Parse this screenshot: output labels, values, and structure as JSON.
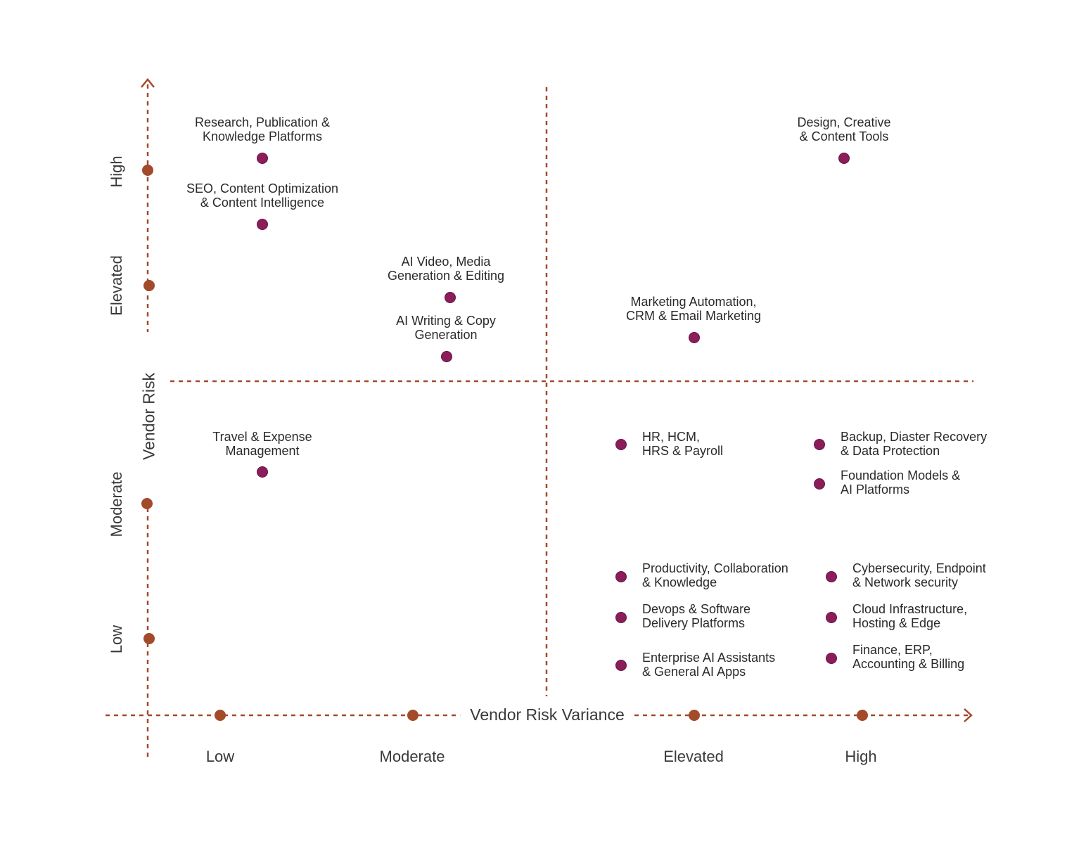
{
  "chart_data": {
    "type": "scatter",
    "xlabel": "Vendor Risk Variance",
    "ylabel": "Vendor Risk",
    "x_ticks": [
      "Low",
      "Moderate",
      "Elevated",
      "High"
    ],
    "y_ticks": [
      "Low",
      "Moderate",
      "Elevated",
      "High"
    ],
    "grid": false,
    "quadrant_dividers": true,
    "colors": {
      "axis": "#a34a2a",
      "point": "#8a1d5a"
    },
    "points": [
      {
        "label_lines": [
          "Research, Publication &",
          "Knowledge Platforms"
        ]
      },
      {
        "label_lines": [
          "SEO, Content Optimization",
          "& Content Intelligence"
        ]
      },
      {
        "label_lines": [
          "AI Video, Media",
          "Generation & Editing"
        ]
      },
      {
        "label_lines": [
          "AI Writing & Copy",
          "Generation"
        ]
      },
      {
        "label_lines": [
          "Design, Creative",
          "& Content Tools"
        ]
      },
      {
        "label_lines": [
          "Marketing Automation,",
          "CRM & Email Marketing"
        ]
      },
      {
        "label_lines": [
          "Travel & Expense",
          "Management"
        ]
      },
      {
        "label_lines": [
          "HR, HCM,",
          "HRS & Payroll"
        ]
      },
      {
        "label_lines": [
          "Backup, Diaster Recovery",
          "& Data Protection"
        ]
      },
      {
        "label_lines": [
          "Foundation Models &",
          "AI Platforms"
        ]
      },
      {
        "label_lines": [
          "Productivity, Collaboration",
          "& Knowledge"
        ]
      },
      {
        "label_lines": [
          "Cybersecurity, Endpoint",
          "& Network security"
        ]
      },
      {
        "label_lines": [
          "Devops & Software",
          "Delivery Platforms"
        ]
      },
      {
        "label_lines": [
          "Cloud Infrastructure,",
          "Hosting & Edge"
        ]
      },
      {
        "label_lines": [
          "Enterprise AI Assistants",
          "& General AI Apps"
        ]
      },
      {
        "label_lines": [
          "Finance, ERP,",
          "Accounting & Billing"
        ]
      }
    ]
  }
}
